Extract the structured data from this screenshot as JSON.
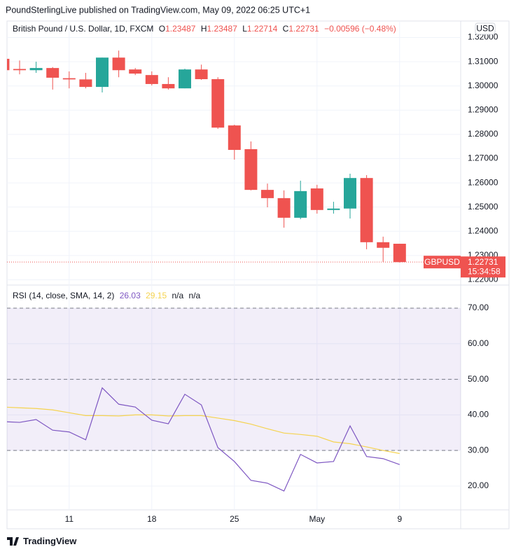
{
  "header": {
    "text": "PoundSterlingLive published on TradingView.com, May 09, 2022 06:25 UTC+1"
  },
  "footer": {
    "brand": "TradingView"
  },
  "chart_data": [
    {
      "type": "candlestick",
      "title": "British Pound / U.S. Dollar, 1D, FXCM",
      "ohlc_labels": [
        "O",
        "H",
        "L",
        "C"
      ],
      "change": "−0.00596 (−0.48%)",
      "currency": "USD",
      "symbol": "GBPUSD",
      "countdown": "15:34:58",
      "categories": [
        null,
        null,
        null,
        null,
        "11",
        null,
        null,
        null,
        null,
        "18",
        null,
        null,
        null,
        null,
        "25",
        null,
        null,
        null,
        null,
        "May",
        null,
        null,
        null,
        null,
        "9"
      ],
      "open": [
        1.3112,
        1.307,
        1.3065,
        1.3074,
        1.3032,
        1.3027,
        1.2996,
        1.3117,
        1.3068,
        1.3045,
        1.3008,
        1.299,
        1.3068,
        1.3028,
        1.2837,
        1.2739,
        1.2571,
        1.2537,
        1.2456,
        1.2577,
        1.2488,
        1.2494,
        1.262,
        1.2355,
        1.23487
      ],
      "high": [
        1.312,
        1.3105,
        1.31,
        1.3078,
        1.306,
        1.3054,
        1.3117,
        1.3146,
        1.3074,
        1.306,
        1.3036,
        1.3071,
        1.3088,
        1.3036,
        1.284,
        1.2771,
        1.2597,
        1.2569,
        1.2609,
        1.2592,
        1.2522,
        1.2638,
        1.2632,
        1.2378,
        1.23487
      ],
      "low": [
        1.306,
        1.3048,
        1.3054,
        1.2985,
        1.299,
        1.299,
        1.2973,
        1.3036,
        1.3045,
        1.3002,
        1.2985,
        1.299,
        1.3025,
        1.2823,
        1.2696,
        1.2569,
        1.2499,
        1.2415,
        1.245,
        1.2473,
        1.2473,
        1.2453,
        1.2326,
        1.2274,
        1.22714
      ],
      "close": [
        1.3065,
        1.3065,
        1.3074,
        1.3034,
        1.3027,
        1.2996,
        1.3117,
        1.3065,
        1.3051,
        1.3008,
        1.299,
        1.3068,
        1.3028,
        1.2828,
        1.2736,
        1.2571,
        1.2537,
        1.2456,
        1.2566,
        1.2488,
        1.2494,
        1.262,
        1.2355,
        1.2332,
        1.22731
      ],
      "up_color": "#26a69a",
      "down_color": "#ef5350",
      "ylim": [
        1.2184,
        1.3268
      ],
      "yticks": [
        {
          "value": 1.22,
          "label": "1.22000"
        },
        {
          "value": 1.23,
          "label": "1.23000"
        },
        {
          "value": 1.24,
          "label": "1.24000"
        },
        {
          "value": 1.25,
          "label": "1.25000"
        },
        {
          "value": 1.26,
          "label": "1.26000"
        },
        {
          "value": 1.27,
          "label": "1.27000"
        },
        {
          "value": 1.28,
          "label": "1.28000"
        },
        {
          "value": 1.29,
          "label": "1.29000"
        },
        {
          "value": 1.3,
          "label": "1.30000"
        },
        {
          "value": 1.31,
          "label": "1.31000"
        },
        {
          "value": 1.32,
          "label": "1.32000"
        }
      ],
      "grid": true
    },
    {
      "type": "line",
      "title": "RSI (14, close, SMA, 14, 2)",
      "extra_labels": [
        "n/a",
        "n/a"
      ],
      "series": [
        {
          "color": "#7e57c2",
          "values": [
            38.1,
            37.9,
            38.7,
            35.7,
            35.2,
            33.0,
            47.6,
            43.0,
            42.2,
            38.5,
            37.5,
            45.8,
            42.8,
            30.8,
            26.9,
            21.6,
            20.8,
            18.6,
            28.9,
            26.5,
            26.9,
            36.9,
            28.3,
            27.7,
            26.03
          ]
        },
        {
          "color": "#f5d34f",
          "values": [
            42.2,
            42.0,
            41.8,
            41.4,
            40.6,
            39.8,
            39.8,
            39.7,
            40.0,
            40.0,
            39.7,
            39.8,
            39.8,
            39.1,
            38.4,
            37.4,
            36.1,
            34.9,
            34.5,
            34.0,
            32.4,
            31.9,
            31.0,
            30.0,
            29.15
          ]
        }
      ],
      "levels": [
        70,
        50,
        30
      ],
      "ylim": [
        13.3,
        76.3
      ],
      "yticks": [
        {
          "value": 20,
          "label": "20.00"
        },
        {
          "value": 30,
          "label": "30.00"
        },
        {
          "value": 40,
          "label": "40.00"
        },
        {
          "value": 50,
          "label": "50.00"
        },
        {
          "value": 60,
          "label": "60.00"
        },
        {
          "value": 70,
          "label": "70.00"
        }
      ],
      "grid": true
    }
  ]
}
